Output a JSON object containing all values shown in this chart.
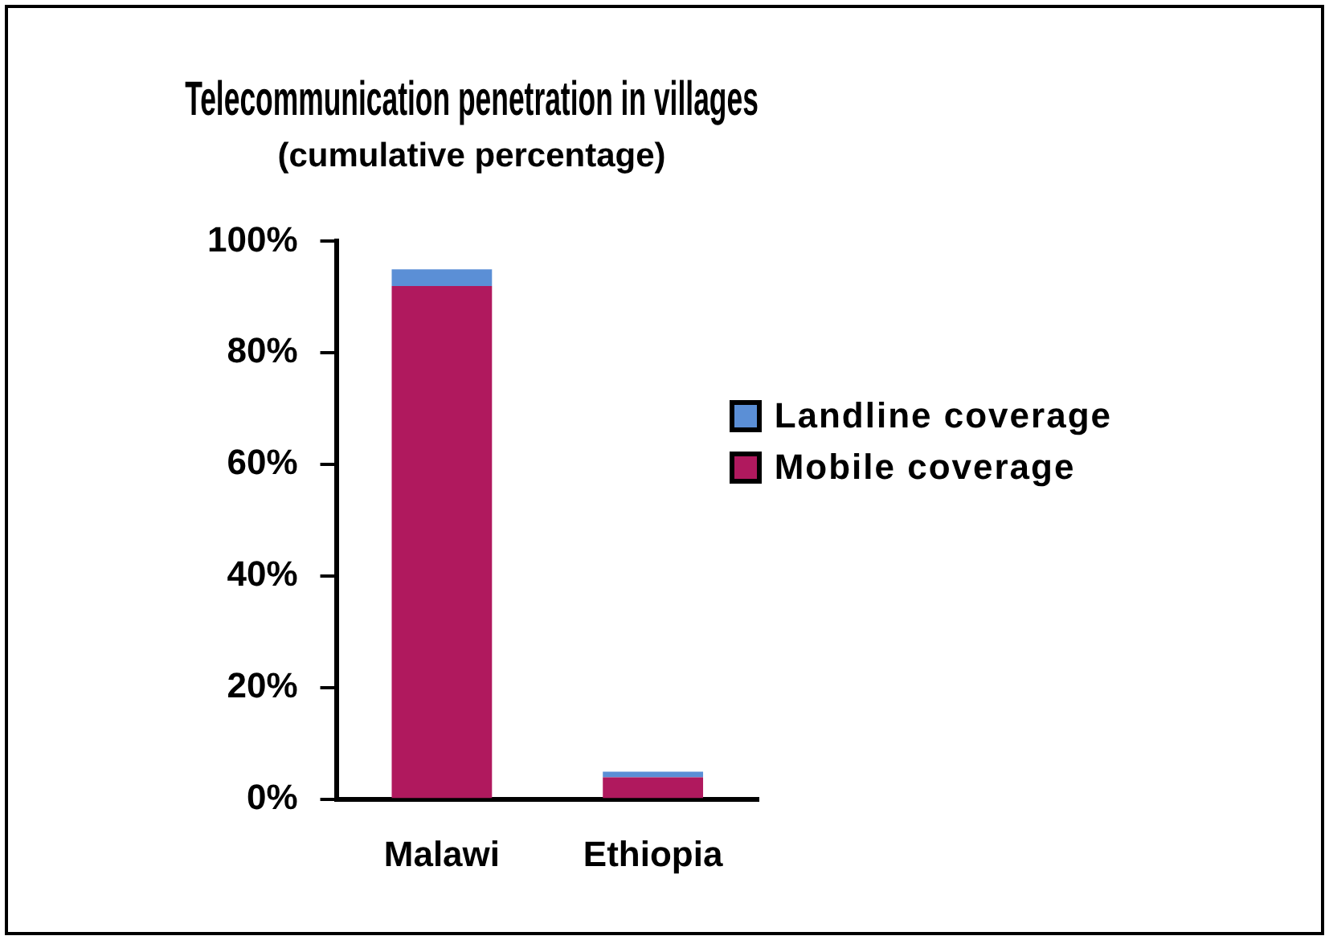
{
  "chart_data": {
    "type": "bar",
    "title": "Telecommunication penetration in villages",
    "subtitle": "(cumulative percentage)",
    "categories": [
      "Malawi",
      "Ethiopia"
    ],
    "series": [
      {
        "name": "Mobile coverage",
        "color": "#b0195e",
        "values": [
          92,
          4
        ]
      },
      {
        "name": "Landline coverage",
        "color": "#5b8fd6",
        "values": [
          3,
          1
        ]
      }
    ],
    "stacked": true,
    "legend": "right",
    "ylim": [
      0,
      100
    ],
    "yticks": [
      {
        "value": 0,
        "label": "0%"
      },
      {
        "value": 20,
        "label": "20%"
      },
      {
        "value": 40,
        "label": "40%"
      },
      {
        "value": 60,
        "label": "60%"
      },
      {
        "value": 80,
        "label": "80%"
      },
      {
        "value": 100,
        "label": "100%"
      }
    ],
    "grid": false
  }
}
